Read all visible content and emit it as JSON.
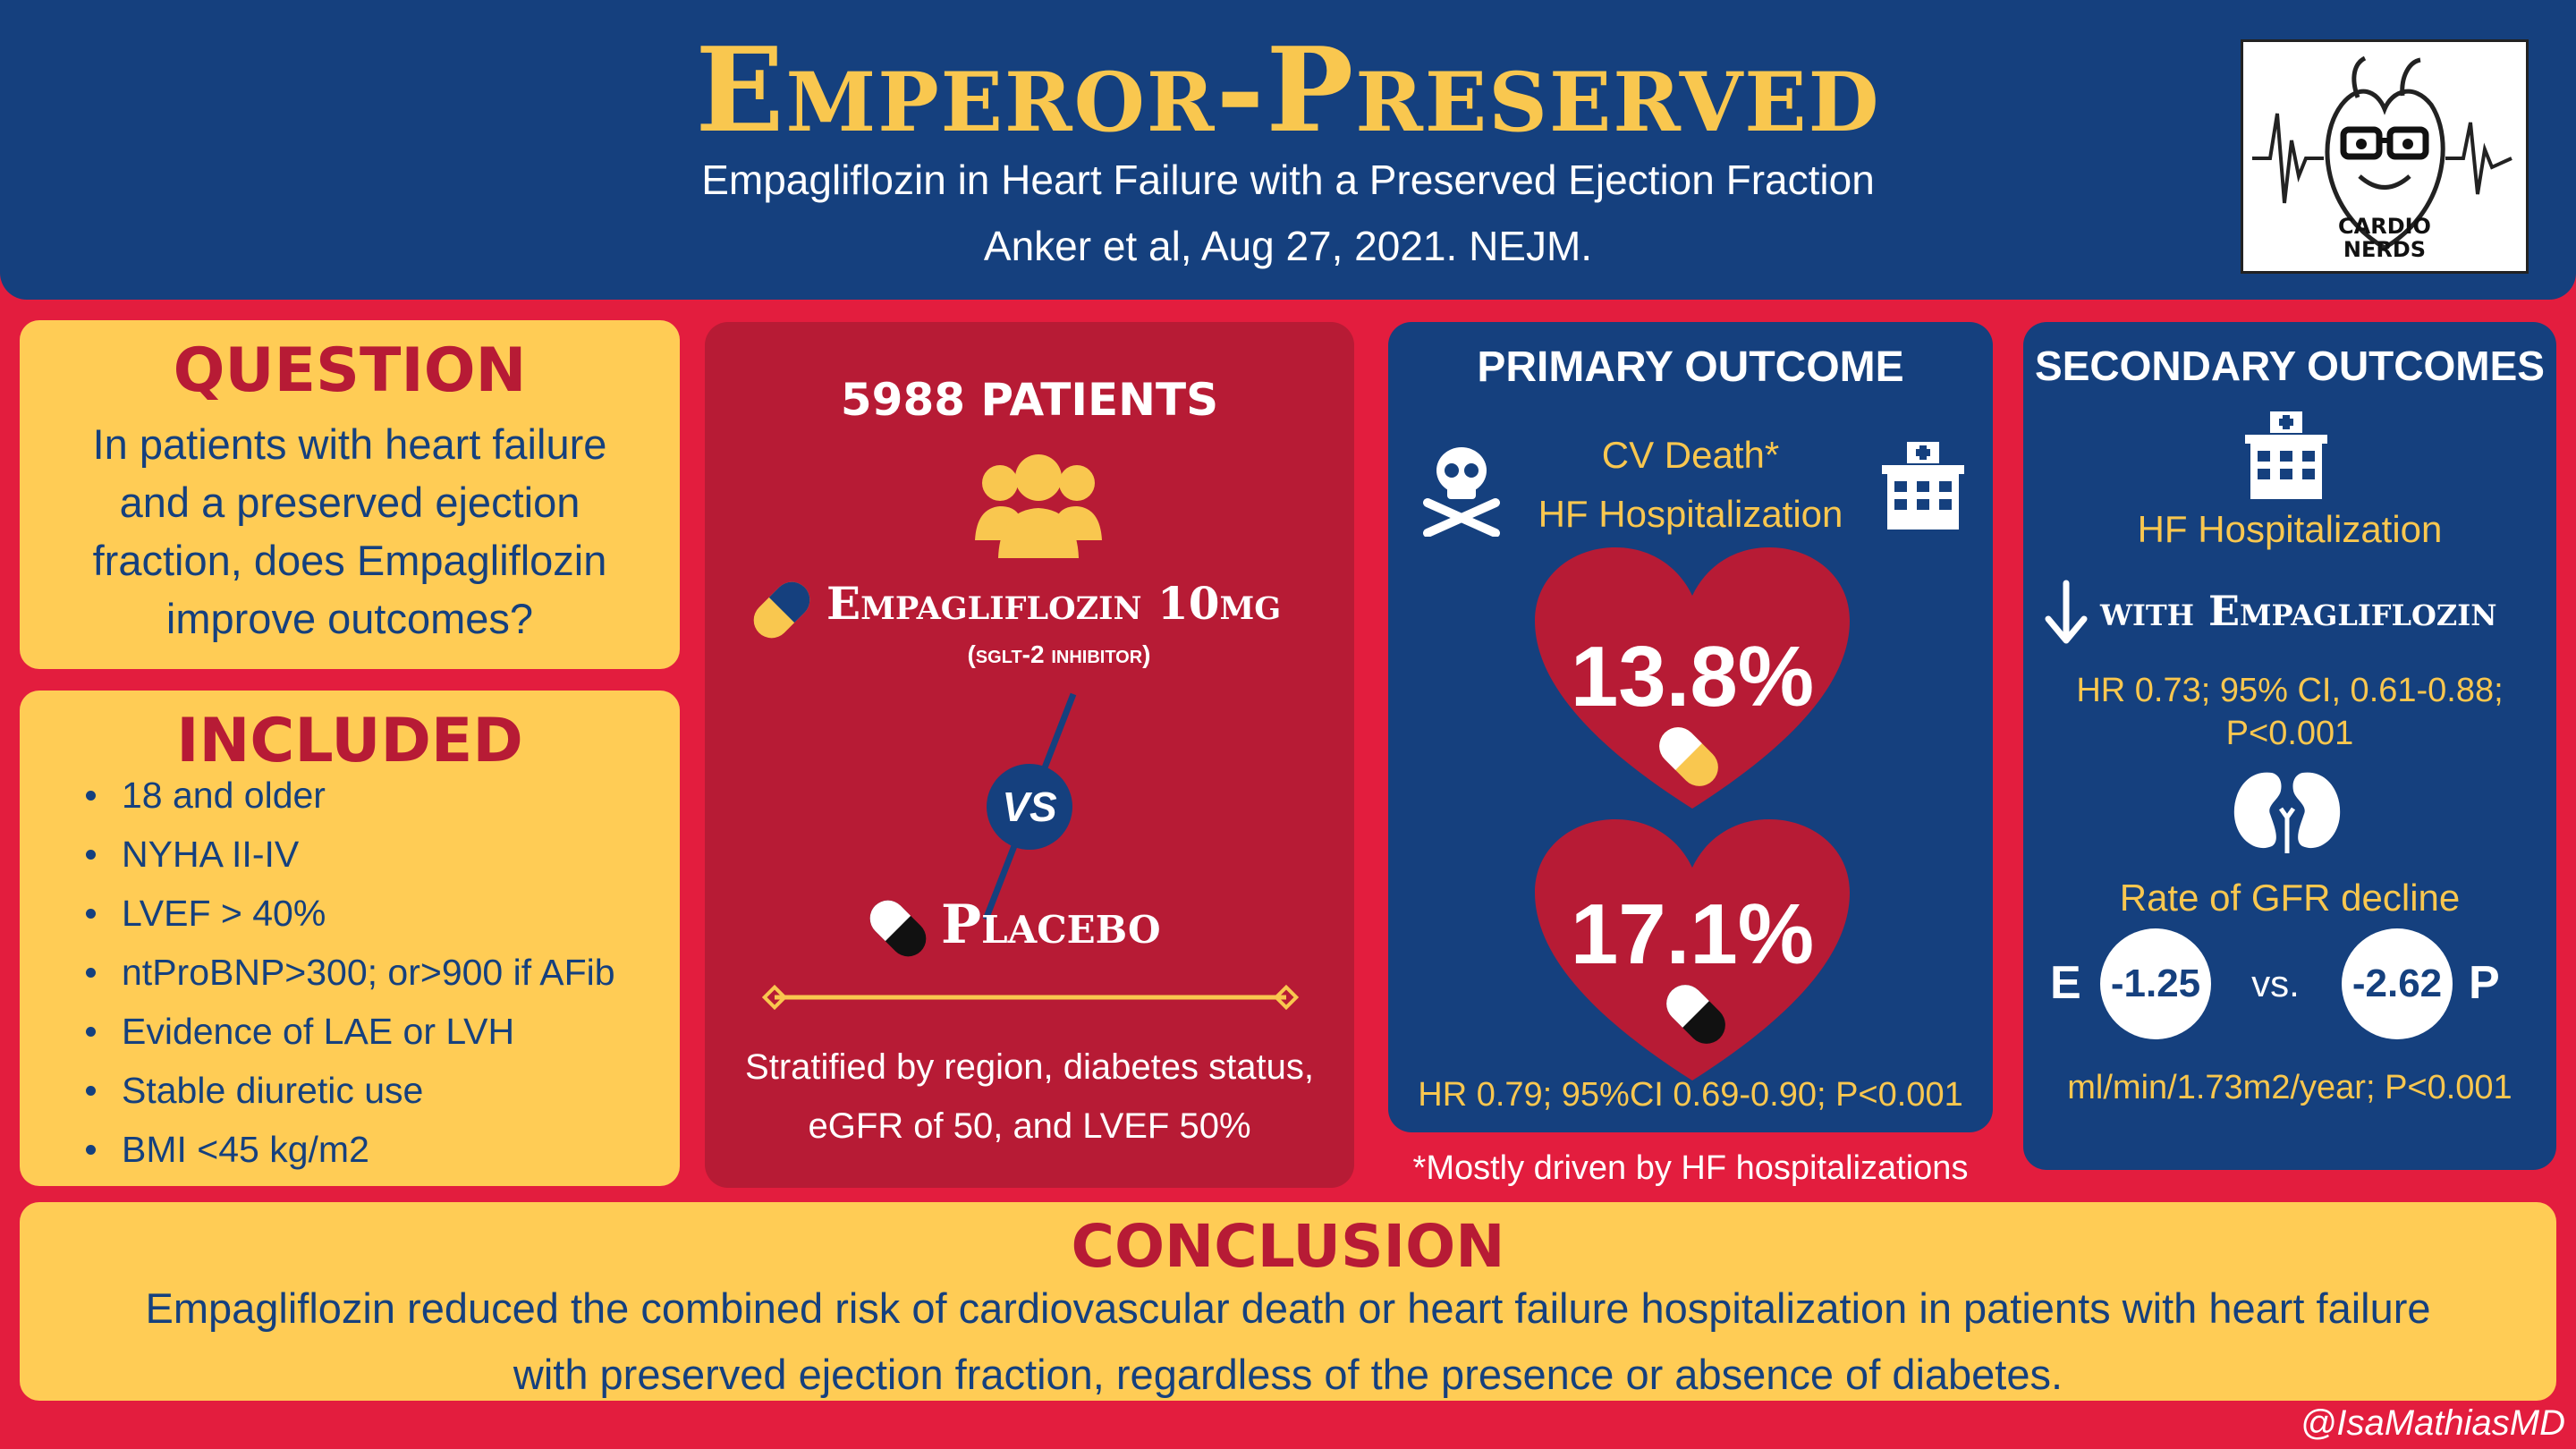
{
  "header": {
    "title": "Emperor-Preserved",
    "subtitle": "Empagliflozin in Heart Failure with a Preserved Ejection Fraction",
    "citation": "Anker et al, Aug 27, 2021. NEJM.",
    "logo_text_1": "CARDIO",
    "logo_text_2": "NERDS"
  },
  "question": {
    "heading": "QUESTION",
    "line1": "In patients with heart failure",
    "line2": "and a preserved ejection",
    "line3": "fraction, does Empagliflozin",
    "line4": "improve outcomes?"
  },
  "included": {
    "heading": "INCLUDED",
    "items": [
      "18 and older",
      "NYHA II-IV",
      "LVEF > 40%",
      "ntProBNP>300; or>900 if AFib",
      "Evidence of LAE or LVH",
      "Stable diuretic use",
      "BMI <45 kg/m2"
    ]
  },
  "design": {
    "patients": "5988 PATIENTS",
    "drug": "Empagliflozin 10mg",
    "drug_class": "(sglt-2 inhibitor)",
    "vs": "VS",
    "placebo": "Placebo",
    "stratified_line1": "Stratified by region, diabetes status,",
    "stratified_line2": "eGFR of 50, and LVEF 50%"
  },
  "primary": {
    "heading": "PRIMARY OUTCOME",
    "outcome1": "CV Death*",
    "outcome2": "HF Hospitalization",
    "empa_rate": "13.8%",
    "placebo_rate": "17.1%",
    "hr": "HR 0.79; 95%CI 0.69-0.90; P<0.001",
    "footnote": "*Mostly driven by HF hospitalizations"
  },
  "secondary": {
    "heading": "SECONDARY OUTCOMES",
    "outcome": "HF Hospitalization",
    "with_empa": "with Empagliflozin",
    "hr_line1": "HR 0.73; 95% CI, 0.61-0.88;",
    "hr_line2": "P<0.001",
    "gfr_label": "Rate of GFR decline",
    "e_label": "E",
    "e_value": "-1.25",
    "vs": "vs.",
    "p_value": "-2.62",
    "p_label": "P",
    "units": "ml/min/1.73m2/year; P<0.001"
  },
  "conclusion": {
    "heading": "CONCLUSION",
    "line1": "Empagliflozin reduced the combined risk of cardiovascular death or heart failure hospitalization in patients with heart failure",
    "line2": "with preserved ejection fraction, regardless of the presence or absence of diabetes."
  },
  "credit": "@IsaMathiasMD",
  "colors": {
    "background": "#e31d3e",
    "navy": "#15407e",
    "yellow": "#ffcc55",
    "gold": "#f9c74f",
    "dark_red": "#b71b35"
  }
}
